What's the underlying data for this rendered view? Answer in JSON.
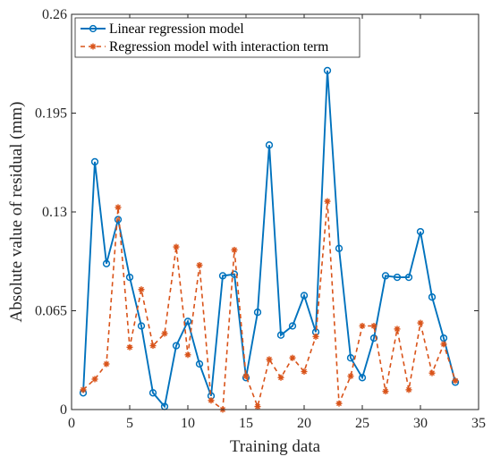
{
  "chart_data": {
    "type": "line",
    "xlabel": "Training data",
    "ylabel": "Absolute value of residual (mm)",
    "xlim": [
      0,
      35
    ],
    "ylim": [
      0,
      0.26
    ],
    "xticks": [
      "0",
      "5",
      "10",
      "15",
      "20",
      "25",
      "30",
      "35"
    ],
    "yticks": [
      "0",
      "0.065",
      "0.13",
      "0.195",
      "0.26"
    ],
    "legend_position": "top-left",
    "grid": false,
    "x": [
      1,
      2,
      3,
      4,
      5,
      6,
      7,
      8,
      9,
      10,
      11,
      12,
      13,
      14,
      15,
      16,
      17,
      18,
      19,
      20,
      21,
      22,
      23,
      24,
      25,
      26,
      27,
      28,
      29,
      30,
      31,
      32,
      33
    ],
    "series": [
      {
        "name": "Linear regression model",
        "color": "#0072BD",
        "line_style": "solid",
        "marker": "circle",
        "values": [
          0.011,
          0.163,
          0.096,
          0.125,
          0.087,
          0.055,
          0.011,
          0.002,
          0.042,
          0.058,
          0.03,
          0.009,
          0.088,
          0.089,
          0.021,
          0.064,
          0.174,
          0.049,
          0.055,
          0.075,
          0.051,
          0.223,
          0.106,
          0.034,
          0.021,
          0.047,
          0.088,
          0.087,
          0.087,
          0.117,
          0.074,
          0.047,
          0.018
        ]
      },
      {
        "name": "Regression model with interaction term",
        "color": "#D95319",
        "line_style": "dashed",
        "marker": "asterisk",
        "values": [
          0.013,
          0.02,
          0.03,
          0.133,
          0.041,
          0.079,
          0.042,
          0.05,
          0.107,
          0.036,
          0.095,
          0.006,
          0.0,
          0.105,
          0.022,
          0.002,
          0.033,
          0.021,
          0.034,
          0.025,
          0.048,
          0.137,
          0.004,
          0.022,
          0.055,
          0.055,
          0.012,
          0.053,
          0.013,
          0.057,
          0.024,
          0.043,
          0.019
        ]
      }
    ]
  }
}
